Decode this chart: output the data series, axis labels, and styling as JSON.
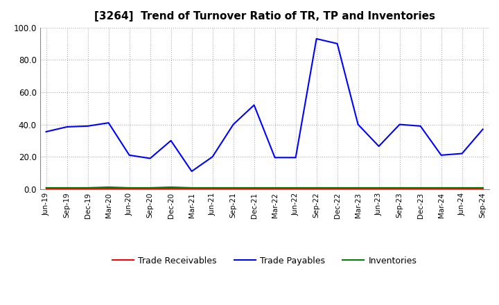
{
  "title": "[3264]  Trend of Turnover Ratio of TR, TP and Inventories",
  "x_labels": [
    "Jun-19",
    "Sep-19",
    "Dec-19",
    "Mar-20",
    "Jun-20",
    "Sep-20",
    "Dec-20",
    "Mar-21",
    "Jun-21",
    "Sep-21",
    "Dec-21",
    "Mar-22",
    "Jun-22",
    "Sep-22",
    "Dec-22",
    "Mar-23",
    "Jun-23",
    "Sep-23",
    "Dec-23",
    "Mar-24",
    "Jun-24",
    "Sep-24"
  ],
  "trade_receivables": [
    0.3,
    0.3,
    0.3,
    0.3,
    0.3,
    0.3,
    0.3,
    0.3,
    0.3,
    0.3,
    0.3,
    0.3,
    0.3,
    0.3,
    0.3,
    0.3,
    0.3,
    0.3,
    0.3,
    0.3,
    0.3,
    0.3
  ],
  "trade_payables": [
    35.5,
    38.5,
    39.0,
    41.0,
    21.0,
    19.0,
    30.0,
    11.0,
    20.0,
    40.0,
    52.0,
    19.5,
    19.5,
    93.0,
    90.0,
    40.0,
    26.5,
    40.0,
    39.0,
    21.0,
    22.0,
    37.0
  ],
  "inventories": [
    0.8,
    0.8,
    0.8,
    1.2,
    0.8,
    0.8,
    1.2,
    0.8,
    0.8,
    0.8,
    0.8,
    0.8,
    0.8,
    0.8,
    0.8,
    0.8,
    0.8,
    0.8,
    0.8,
    0.8,
    0.8,
    0.8
  ],
  "tr_color": "#ff0000",
  "tp_color": "#0000ff",
  "inv_color": "#008000",
  "ylim": [
    0,
    100
  ],
  "yticks": [
    0.0,
    20.0,
    40.0,
    60.0,
    80.0,
    100.0
  ],
  "legend_labels": [
    "Trade Receivables",
    "Trade Payables",
    "Inventories"
  ],
  "background_color": "#ffffff",
  "grid_color": "#aaaaaa"
}
